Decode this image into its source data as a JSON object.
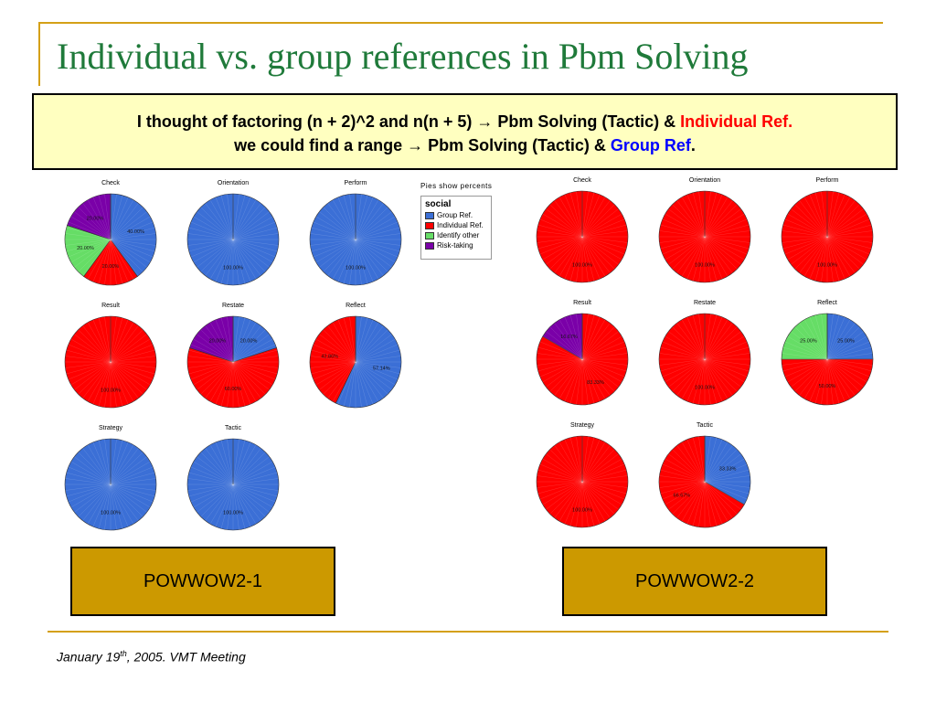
{
  "title": "Individual vs. group references in Pbm Solving",
  "banner": {
    "line1_prefix": "I thought of factoring (n + 2)^2 and n(n + 5)",
    "arrow": "→",
    "line1_mid": " Pbm Solving (Tactic) & ",
    "line1_highlight": "Individual Ref",
    "line1_end": ".",
    "line2_prefix": "we could find a range ",
    "line2_mid": " Pbm Solving (Tactic) & ",
    "line2_highlight": "Group Ref",
    "line2_end": "."
  },
  "legend": {
    "caption": "Pies show percents",
    "heading": "social",
    "items": [
      {
        "label": "Group Ref.",
        "color": "#3b6fd6"
      },
      {
        "label": "Individual Ref.",
        "color": "#ff0000"
      },
      {
        "label": "Identify other",
        "color": "#66dd66"
      },
      {
        "label": "Risk-taking",
        "color": "#7a00a8"
      }
    ]
  },
  "colors": {
    "group": "#3b6fd6",
    "individual": "#ff0000",
    "identify": "#66dd66",
    "risk": "#7a00a8"
  },
  "boxes": {
    "left": "POWWOW2-1",
    "right": "POWWOW2-2"
  },
  "footer": {
    "prefix": "January 19",
    "sup": "th",
    "suffix": ", 2005. VMT Meeting"
  },
  "chart_data": [
    {
      "group": "POWWOW2-1",
      "type": "pie",
      "pies": [
        {
          "title": "Check",
          "slices": [
            {
              "key": "group",
              "value": 40,
              "label": "40.00%"
            },
            {
              "key": "individual",
              "value": 20,
              "label": "20.00%"
            },
            {
              "key": "identify",
              "value": 20,
              "label": "20.00%"
            },
            {
              "key": "risk",
              "value": 20,
              "label": "20.00%"
            }
          ]
        },
        {
          "title": "Orientation",
          "slices": [
            {
              "key": "group",
              "value": 100,
              "label": "100.00%"
            }
          ]
        },
        {
          "title": "Perform",
          "slices": [
            {
              "key": "group",
              "value": 100,
              "label": "100.00%"
            }
          ]
        },
        {
          "title": "Result",
          "slices": [
            {
              "key": "individual",
              "value": 100,
              "label": "100.00%"
            }
          ]
        },
        {
          "title": "Restate",
          "slices": [
            {
              "key": "group",
              "value": 20,
              "label": "20.00%"
            },
            {
              "key": "individual",
              "value": 60,
              "label": "60.00%"
            },
            {
              "key": "risk",
              "value": 20,
              "label": "20.00%"
            }
          ]
        },
        {
          "title": "Reflect",
          "slices": [
            {
              "key": "group",
              "value": 57.14,
              "label": "57.14%"
            },
            {
              "key": "individual",
              "value": 42.86,
              "label": "42.86%"
            }
          ]
        },
        {
          "title": "Strategy",
          "slices": [
            {
              "key": "group",
              "value": 100,
              "label": "100.00%"
            }
          ]
        },
        {
          "title": "Tactic",
          "slices": [
            {
              "key": "group",
              "value": 100,
              "label": "100.00%"
            }
          ]
        }
      ]
    },
    {
      "group": "POWWOW2-2",
      "type": "pie",
      "pies": [
        {
          "title": "Check",
          "slices": [
            {
              "key": "individual",
              "value": 100,
              "label": "100.00%"
            }
          ]
        },
        {
          "title": "Orientation",
          "slices": [
            {
              "key": "individual",
              "value": 100,
              "label": "100.00%"
            }
          ]
        },
        {
          "title": "Perform",
          "slices": [
            {
              "key": "individual",
              "value": 100,
              "label": "100.00%"
            }
          ]
        },
        {
          "title": "Result",
          "slices": [
            {
              "key": "individual",
              "value": 83.33,
              "label": "83.33%"
            },
            {
              "key": "risk",
              "value": 16.67,
              "label": "16.67%"
            }
          ]
        },
        {
          "title": "Restate",
          "slices": [
            {
              "key": "individual",
              "value": 100,
              "label": "100.00%"
            }
          ]
        },
        {
          "title": "Reflect",
          "slices": [
            {
              "key": "group",
              "value": 25,
              "label": "25.00%"
            },
            {
              "key": "individual",
              "value": 50,
              "label": "50.00%"
            },
            {
              "key": "identify",
              "value": 25,
              "label": "25.00%"
            }
          ]
        },
        {
          "title": "Strategy",
          "slices": [
            {
              "key": "individual",
              "value": 100,
              "label": "100.00%"
            }
          ]
        },
        {
          "title": "Tactic",
          "slices": [
            {
              "key": "group",
              "value": 33.33,
              "label": "33.33%"
            },
            {
              "key": "individual",
              "value": 66.67,
              "label": "66.67%"
            }
          ]
        }
      ]
    }
  ]
}
